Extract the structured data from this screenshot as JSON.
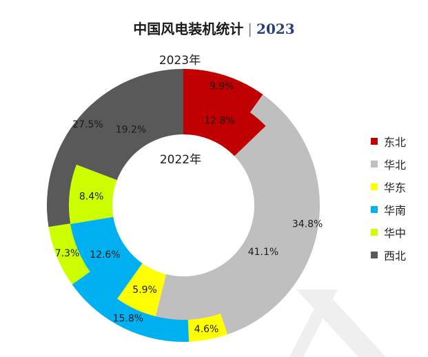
{
  "title": {
    "main": "中国风电装机统计",
    "separator": "|",
    "year": "2023"
  },
  "chart_data": {
    "type": "donut",
    "title": "中国风电装机统计 | 2023",
    "rings": [
      {
        "name": "2023年",
        "position": "outer",
        "values": [
          9.9,
          34.8,
          4.6,
          15.8,
          7.3,
          27.5
        ]
      },
      {
        "name": "2022年",
        "position": "inner",
        "values": [
          12.8,
          41.1,
          5.9,
          12.6,
          8.4,
          19.2
        ]
      }
    ],
    "categories": [
      "东北",
      "华北",
      "华东",
      "华南",
      "华中",
      "西北"
    ],
    "colors": [
      "#c00000",
      "#bfbfbf",
      "#ffff00",
      "#00b0f0",
      "#ccff00",
      "#595959"
    ],
    "legend_position": "right"
  },
  "labels": {
    "outer": [
      "9.9%",
      "34.8%",
      "4.6%",
      "15.8%",
      "7.3%",
      "27.5%"
    ],
    "inner": [
      "12.8%",
      "41.1%",
      "5.9%",
      "12.6%",
      "8.4%",
      "19.2%"
    ]
  }
}
